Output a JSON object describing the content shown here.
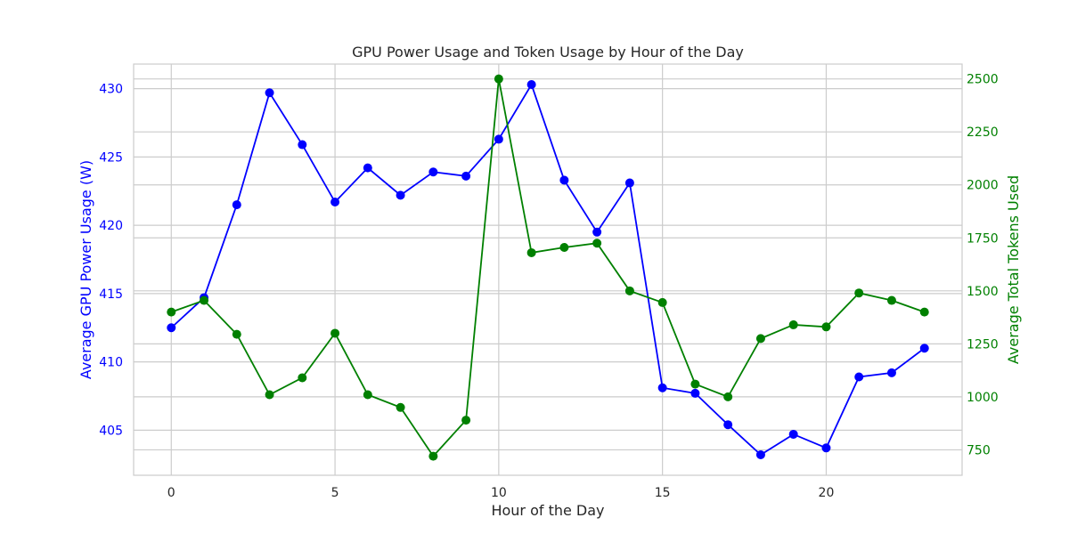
{
  "chart_data": {
    "type": "line",
    "title": "GPU Power Usage and Token Usage by Hour of the Day",
    "xlabel": "Hour of the Day",
    "ylabel_left": "Average GPU Power Usage (W)",
    "ylabel_right": "Average Total Tokens Used",
    "x": [
      0,
      1,
      2,
      3,
      4,
      5,
      6,
      7,
      8,
      9,
      10,
      11,
      12,
      13,
      14,
      15,
      16,
      17,
      18,
      19,
      20,
      21,
      22,
      23
    ],
    "xlim": [
      -1.15,
      24.15
    ],
    "xticks": [
      0,
      5,
      10,
      15,
      20
    ],
    "ylim_left": [
      401.7,
      431.8
    ],
    "yticks_left": [
      405,
      410,
      415,
      420,
      425,
      430
    ],
    "ylim_right": [
      630,
      2570
    ],
    "yticks_right": [
      750,
      1000,
      1250,
      1500,
      1750,
      2000,
      2250,
      2500
    ],
    "grid": true,
    "colors": {
      "left": "#0000ff",
      "right": "#008000"
    },
    "series": [
      {
        "axis": "left",
        "values": [
          412.5,
          414.7,
          421.5,
          429.7,
          425.9,
          421.7,
          424.2,
          422.2,
          423.9,
          423.6,
          426.3,
          430.3,
          423.3,
          419.5,
          423.1,
          408.1,
          407.7,
          405.4,
          403.2,
          404.7,
          403.7,
          408.9,
          409.2,
          411.0
        ]
      },
      {
        "axis": "right",
        "values": [
          1400,
          1455,
          1295,
          1010,
          1090,
          1300,
          1010,
          950,
          720,
          890,
          2500,
          1680,
          1705,
          1725,
          1500,
          1445,
          1060,
          1000,
          1275,
          1340,
          1330,
          1490,
          1455,
          1400
        ]
      }
    ]
  }
}
